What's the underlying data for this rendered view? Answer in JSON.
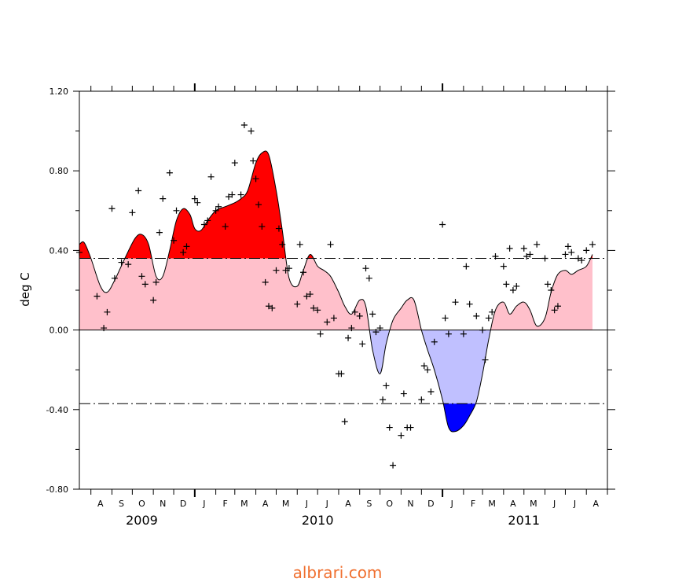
{
  "chart_data": {
    "type": "line",
    "title": "",
    "ylabel": "deg C",
    "xlabel": "",
    "ylim": [
      -0.8,
      1.2
    ],
    "yticks": [
      -0.8,
      -0.4,
      0.0,
      0.4,
      0.8,
      1.2
    ],
    "ytick_labels": [
      "-0.80",
      "-0.40",
      "0.00",
      "0.40",
      "0.80",
      "1.20"
    ],
    "x_start": "2009-07-15",
    "x_end": "2011-09-01",
    "month_labels": [
      "A",
      "S",
      "O",
      "N",
      "D",
      "J",
      "F",
      "M",
      "A",
      "M",
      "J",
      "J",
      "A",
      "S",
      "O",
      "N",
      "D",
      "J",
      "F",
      "M",
      "A",
      "M",
      "J",
      "J",
      "A"
    ],
    "month_dates": [
      "2009-08-15",
      "2009-09-15",
      "2009-10-15",
      "2009-11-15",
      "2009-12-15",
      "2010-01-15",
      "2010-02-15",
      "2010-03-15",
      "2010-04-15",
      "2010-05-15",
      "2010-06-15",
      "2010-07-15",
      "2010-08-15",
      "2010-09-15",
      "2010-10-15",
      "2010-11-15",
      "2010-12-15",
      "2011-01-15",
      "2011-02-15",
      "2011-03-15",
      "2011-04-15",
      "2011-05-15",
      "2011-06-15",
      "2011-07-15",
      "2011-08-15"
    ],
    "year_labels": [
      {
        "label": "2009",
        "date": "2009-10-15"
      },
      {
        "label": "2010",
        "date": "2010-07-01"
      },
      {
        "label": "2011",
        "date": "2011-05-01"
      }
    ],
    "thresholds": [
      0.36,
      -0.37
    ],
    "colors": {
      "strong_warm": "#ff0000",
      "weak_warm": "#ffc0cb",
      "weak_cool": "#c0c0ff",
      "strong_cool": "#0000ff",
      "line": "#000000"
    },
    "series": [
      {
        "type": "line",
        "x": [
          "2009-07-15",
          "2009-07-22",
          "2009-08-01",
          "2009-08-15",
          "2009-08-25",
          "2009-09-05",
          "2009-09-20",
          "2009-10-05",
          "2009-10-15",
          "2009-10-25",
          "2009-11-05",
          "2009-11-15",
          "2009-11-25",
          "2009-12-05",
          "2009-12-15",
          "2009-12-25",
          "2010-01-01",
          "2010-01-10",
          "2010-01-20",
          "2010-02-01",
          "2010-02-15",
          "2010-03-01",
          "2010-03-10",
          "2010-03-20",
          "2010-04-01",
          "2010-04-10",
          "2010-04-20",
          "2010-05-01",
          "2010-05-10",
          "2010-05-20",
          "2010-06-01",
          "2010-06-10",
          "2010-06-20",
          "2010-07-01",
          "2010-07-10",
          "2010-07-20",
          "2010-08-01",
          "2010-08-10",
          "2010-08-20",
          "2010-09-01",
          "2010-09-10",
          "2010-09-20",
          "2010-10-01",
          "2010-10-10",
          "2010-10-20",
          "2010-11-01",
          "2010-11-10",
          "2010-11-20",
          "2010-12-01",
          "2010-12-10",
          "2010-12-20",
          "2011-01-01",
          "2011-01-10",
          "2011-01-20",
          "2011-02-01",
          "2011-02-10",
          "2011-02-20",
          "2011-03-01",
          "2011-03-10",
          "2011-03-20",
          "2011-04-01",
          "2011-04-10",
          "2011-04-20",
          "2011-05-01",
          "2011-05-10",
          "2011-05-20",
          "2011-06-01",
          "2011-06-10",
          "2011-06-20",
          "2011-07-01",
          "2011-07-10",
          "2011-07-20",
          "2011-08-01",
          "2011-08-10"
        ],
        "values": [
          0.43,
          0.44,
          0.36,
          0.22,
          0.19,
          0.25,
          0.36,
          0.46,
          0.48,
          0.43,
          0.27,
          0.27,
          0.4,
          0.55,
          0.61,
          0.58,
          0.51,
          0.5,
          0.55,
          0.6,
          0.62,
          0.64,
          0.66,
          0.7,
          0.84,
          0.89,
          0.88,
          0.7,
          0.5,
          0.26,
          0.22,
          0.3,
          0.38,
          0.32,
          0.3,
          0.27,
          0.19,
          0.12,
          0.08,
          0.15,
          0.12,
          -0.1,
          -0.22,
          -0.07,
          0.05,
          0.11,
          0.15,
          0.15,
          0.0,
          -0.1,
          -0.2,
          -0.35,
          -0.49,
          -0.51,
          -0.48,
          -0.43,
          -0.36,
          -0.22,
          -0.05,
          0.1,
          0.14,
          0.08,
          0.12,
          0.14,
          0.1,
          0.02,
          0.06,
          0.19,
          0.28,
          0.3,
          0.28,
          0.3,
          0.32,
          0.38
        ]
      },
      {
        "type": "scatter",
        "marker": "+",
        "x": [
          "2009-07-15",
          "2009-08-10",
          "2009-08-20",
          "2009-08-25",
          "2009-09-01",
          "2009-09-05",
          "2009-09-15",
          "2009-09-25",
          "2009-10-01",
          "2009-10-10",
          "2009-10-15",
          "2009-10-20",
          "2009-11-01",
          "2009-11-05",
          "2009-11-10",
          "2009-11-15",
          "2009-11-25",
          "2009-12-01",
          "2009-12-05",
          "2009-12-15",
          "2009-12-20",
          "2010-01-01",
          "2010-01-05",
          "2010-01-15",
          "2010-01-20",
          "2010-01-25",
          "2010-02-01",
          "2010-02-05",
          "2010-02-15",
          "2010-02-20",
          "2010-02-25",
          "2010-03-01",
          "2010-03-10",
          "2010-03-15",
          "2010-03-25",
          "2010-03-28",
          "2010-04-01",
          "2010-04-05",
          "2010-04-10",
          "2010-04-15",
          "2010-04-20",
          "2010-04-25",
          "2010-05-01",
          "2010-05-05",
          "2010-05-10",
          "2010-05-15",
          "2010-05-20",
          "2010-06-01",
          "2010-06-05",
          "2010-06-10",
          "2010-06-15",
          "2010-06-20",
          "2010-06-25",
          "2010-07-01",
          "2010-07-05",
          "2010-07-15",
          "2010-07-20",
          "2010-07-25",
          "2010-08-01",
          "2010-08-05",
          "2010-08-10",
          "2010-08-15",
          "2010-08-20",
          "2010-08-25",
          "2010-09-01",
          "2010-09-05",
          "2010-09-10",
          "2010-09-15",
          "2010-09-20",
          "2010-09-25",
          "2010-10-01",
          "2010-10-05",
          "2010-10-10",
          "2010-10-15",
          "2010-10-20",
          "2010-11-01",
          "2010-11-05",
          "2010-11-10",
          "2010-11-15",
          "2010-12-01",
          "2010-12-05",
          "2010-12-10",
          "2010-12-15",
          "2010-12-20",
          "2011-01-01",
          "2011-01-05",
          "2011-01-10",
          "2011-01-20",
          "2011-02-01",
          "2011-02-05",
          "2011-02-10",
          "2011-02-20",
          "2011-03-01",
          "2011-03-05",
          "2011-03-10",
          "2011-03-15",
          "2011-03-20",
          "2011-04-01",
          "2011-04-05",
          "2011-04-10",
          "2011-04-15",
          "2011-04-20",
          "2011-05-01",
          "2011-05-05",
          "2011-05-10",
          "2011-05-20",
          "2011-06-01",
          "2011-06-05",
          "2011-06-10",
          "2011-06-15",
          "2011-06-20",
          "2011-07-01",
          "2011-07-05",
          "2011-07-10",
          "2011-07-20",
          "2011-07-25",
          "2011-08-01",
          "2011-08-10"
        ],
        "values": [
          0.39,
          0.17,
          0.01,
          0.09,
          0.61,
          0.26,
          0.34,
          0.33,
          0.59,
          0.7,
          0.27,
          0.23,
          0.15,
          0.24,
          0.49,
          0.66,
          0.79,
          0.45,
          0.6,
          0.39,
          0.42,
          0.66,
          0.64,
          0.53,
          0.55,
          0.77,
          0.6,
          0.62,
          0.52,
          0.67,
          0.68,
          0.84,
          0.68,
          1.03,
          1.0,
          0.85,
          0.76,
          0.63,
          0.52,
          0.24,
          0.12,
          0.11,
          0.3,
          0.51,
          0.43,
          0.3,
          0.31,
          0.13,
          0.43,
          0.29,
          0.17,
          0.18,
          0.11,
          0.1,
          -0.02,
          0.04,
          0.43,
          0.06,
          -0.22,
          -0.22,
          -0.46,
          -0.04,
          0.01,
          0.09,
          0.07,
          -0.07,
          0.31,
          0.26,
          0.08,
          -0.01,
          0.01,
          -0.35,
          -0.28,
          -0.49,
          -0.68,
          -0.53,
          -0.32,
          -0.49,
          -0.49,
          -0.35,
          -0.18,
          -0.2,
          -0.31,
          -0.06,
          0.53,
          0.06,
          -0.02,
          0.14,
          -0.02,
          0.32,
          0.13,
          0.07,
          0.0,
          -0.15,
          0.06,
          0.09,
          0.37,
          0.32,
          0.23,
          0.41,
          0.2,
          0.22,
          0.41,
          0.37,
          0.38,
          0.43,
          0.36,
          0.23,
          0.2,
          0.1,
          0.12,
          0.38,
          0.42,
          0.39,
          0.36,
          0.35,
          0.4,
          0.43
        ]
      }
    ]
  },
  "watermark": "albrari.com"
}
